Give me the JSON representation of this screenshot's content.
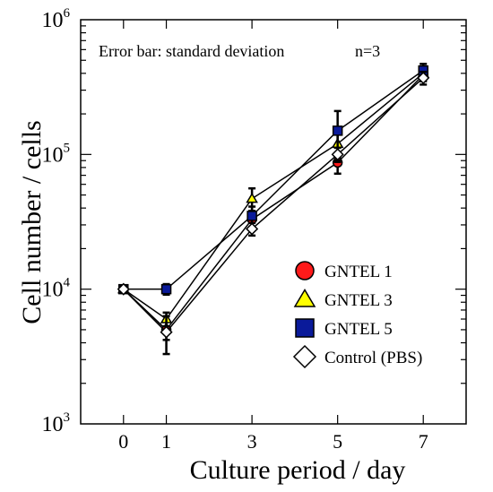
{
  "chart_data": {
    "type": "line",
    "xlabel": "Culture period / day",
    "ylabel": "Cell number / cells",
    "annotation": "Error bar: standard deviation",
    "annotation_n": "n=3",
    "yscale": "log",
    "ylim": [
      1000,
      1000000
    ],
    "xlim": [
      -1,
      8
    ],
    "xticks": [
      0,
      1,
      3,
      5,
      7
    ],
    "yticks": [
      {
        "value": 1000,
        "base": "10",
        "exp": "3"
      },
      {
        "value": 10000,
        "base": "10",
        "exp": "4"
      },
      {
        "value": 100000,
        "base": "10",
        "exp": "5"
      },
      {
        "value": 1000000,
        "base": "10",
        "exp": "6"
      }
    ],
    "legend_position": "lower-right",
    "series": [
      {
        "name": "GNTEL 1",
        "marker": "circle",
        "color": "#ff1a1a",
        "x": [
          0,
          1,
          3,
          5,
          7
        ],
        "y": [
          10000,
          5000,
          33000,
          87000,
          390000
        ],
        "err": [
          500,
          800,
          5000,
          15000,
          40000
        ]
      },
      {
        "name": "GNTEL 3",
        "marker": "triangle",
        "color": "#ffff00",
        "x": [
          0,
          1,
          3,
          5,
          7
        ],
        "y": [
          10000,
          6000,
          47000,
          120000,
          400000
        ],
        "err": [
          500,
          700,
          9000,
          25000,
          50000
        ]
      },
      {
        "name": "GNTEL 5",
        "marker": "square",
        "color": "#0a1a9a",
        "x": [
          0,
          1,
          3,
          5,
          7
        ],
        "y": [
          10000,
          10000,
          35000,
          150000,
          420000
        ],
        "err": [
          500,
          900,
          6000,
          60000,
          50000
        ]
      },
      {
        "name": "Control (PBS)",
        "marker": "diamond",
        "color": "#ffffff",
        "x": [
          0,
          1,
          3,
          5,
          7
        ],
        "y": [
          10000,
          4800,
          28000,
          100000,
          370000
        ],
        "err": [
          500,
          1500,
          3000,
          12000,
          40000
        ]
      }
    ]
  }
}
